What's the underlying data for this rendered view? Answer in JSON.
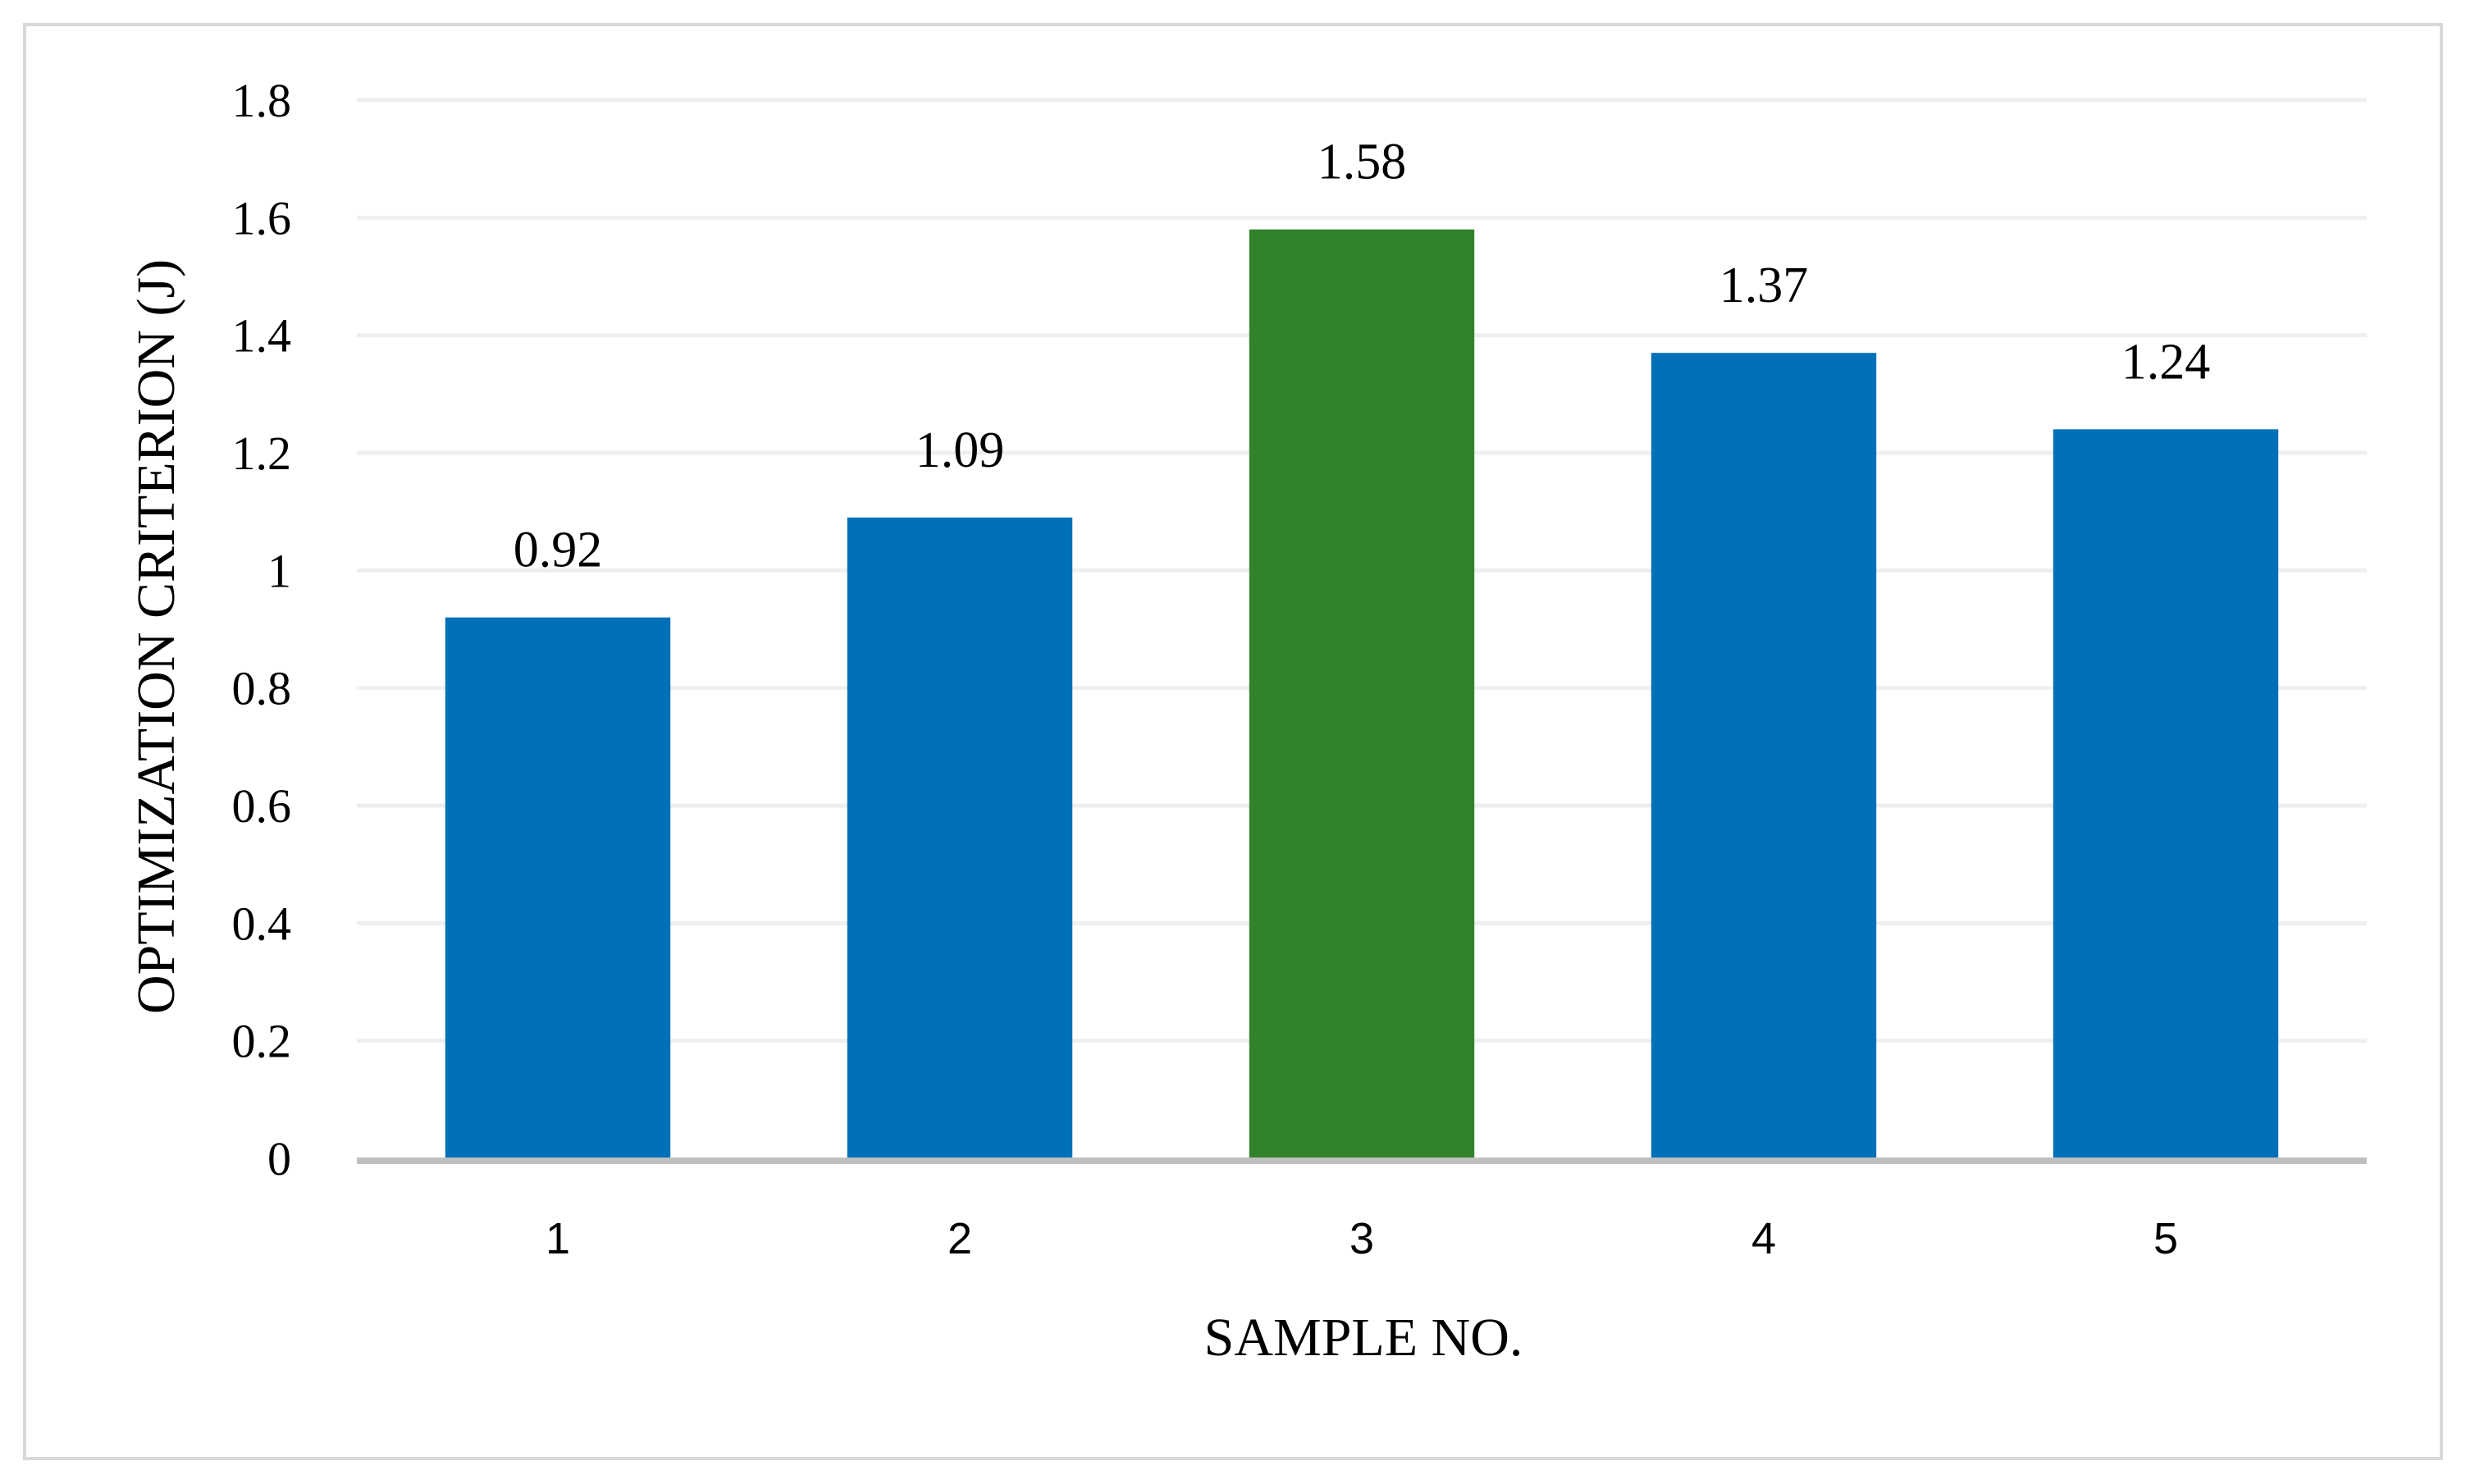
{
  "chart_data": {
    "type": "bar",
    "categories": [
      "1",
      "2",
      "3",
      "4",
      "5"
    ],
    "values": [
      0.92,
      1.09,
      1.58,
      1.37,
      1.24
    ],
    "data_labels": [
      "0.92",
      "1.09",
      "1.58",
      "1.37",
      "1.24"
    ],
    "title": "",
    "xlabel": "SAMPLE NO.",
    "ylabel": "OPTIMIZATION CRITERION (J)",
    "ylim": [
      0,
      1.8
    ],
    "yticks": [
      "0",
      "0.2",
      "0.4",
      "0.6",
      "0.8",
      "1",
      "1.2",
      "1.4",
      "1.6",
      "1.8"
    ],
    "grid": "horizontal",
    "legend": "none",
    "colors": {
      "default_bar": "#0070b8",
      "highlight_bar": "#31822b",
      "gridline": "#efefef",
      "baseline": "#bfbfbf",
      "frame": "#d9d9d9"
    },
    "highlight_index": 2
  }
}
